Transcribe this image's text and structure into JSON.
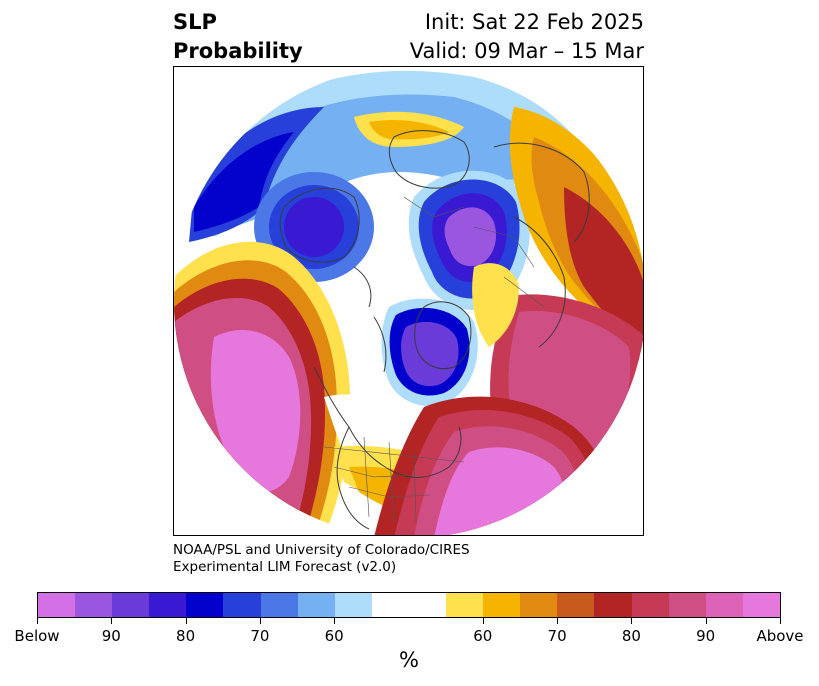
{
  "title": {
    "line1": "SLP",
    "line2": "Probability",
    "init": "Init: Sat 22 Feb 2025",
    "valid": "Valid: 09 Mar – 15 Mar"
  },
  "credit": {
    "line1": "NOAA/PSL and University of Colorado/CIRES",
    "line2": "Experimental LIM Forecast (v2.0)"
  },
  "colorbar": {
    "colors": [
      "#d470e6",
      "#9b56e0",
      "#6a3bd8",
      "#3a19d2",
      "#0202cc",
      "#2640d9",
      "#4b78e6",
      "#74b0f2",
      "#aedcfb",
      "#ffffff",
      "#ffffff",
      "#ffe14d",
      "#f4b400",
      "#e08a12",
      "#c75a1c",
      "#b32424",
      "#c63a55",
      "#cf4f85",
      "#dc63b8",
      "#e677dc"
    ],
    "ticks": [
      "Below",
      "90",
      "80",
      "70",
      "60",
      "60",
      "70",
      "80",
      "90",
      "Above"
    ],
    "tick_positions": [
      0,
      0.1,
      0.2,
      0.3,
      0.4,
      0.6,
      0.7,
      0.8,
      0.9,
      1.0
    ],
    "units": "%"
  },
  "map": {
    "projection": "north-polar-stereographic",
    "features": [
      "coastlines",
      "country-borders",
      "us-state-borders"
    ],
    "fields": [
      {
        "category": "below",
        "level": "90",
        "region": "Kara Sea / central Siberia",
        "color": "#9b56e0"
      },
      {
        "category": "below",
        "level": "80",
        "region": "Hudson Bay / Baffin Island",
        "color": "#6a3bd8"
      },
      {
        "category": "below",
        "level": "70",
        "region": "Scandinavia / Barents Sea",
        "color": "#0202cc"
      },
      {
        "category": "above",
        "level": "Above",
        "region": "Northeast Pacific",
        "color": "#e677dc"
      },
      {
        "category": "above",
        "level": "Above",
        "region": "Central North Atlantic",
        "color": "#e677dc"
      },
      {
        "category": "above",
        "level": "80",
        "region": "East Siberia / Alaska",
        "color": "#c63a55"
      }
    ]
  }
}
